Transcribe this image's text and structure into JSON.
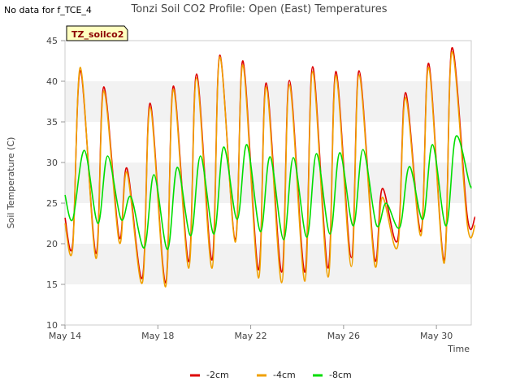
{
  "no_data_note": "No data for f_TCE_4",
  "chart_data": {
    "type": "line",
    "title": "Tonzi Soil CO2 Profile: Open (East) Temperatures",
    "xlabel": "Time",
    "ylabel": "Soil Temperature (C)",
    "badge": "TZ_soilco2",
    "xlim": [
      "2024-05-14",
      "2024-05-31T12:00"
    ],
    "ylim": [
      10,
      45
    ],
    "yticks": [
      10,
      15,
      20,
      25,
      30,
      35,
      40,
      45
    ],
    "xticks": [
      {
        "date": "2024-05-14",
        "label": "May 14"
      },
      {
        "date": "2024-05-18",
        "label": "May 18"
      },
      {
        "date": "2024-05-22",
        "label": "May 22"
      },
      {
        "date": "2024-05-26",
        "label": "May 26"
      },
      {
        "date": "2024-05-30",
        "label": "May 30"
      }
    ],
    "grid": "horizontal bands",
    "legend_position": "bottom",
    "series": [
      {
        "name": "-2cm",
        "color": "#dd0000",
        "x": [
          "2024-05-14T00:00",
          "2024-05-14T08:00",
          "2024-05-14T16:00",
          "2024-05-15T08:00",
          "2024-05-15T16:00",
          "2024-05-16T08:00",
          "2024-05-16T16:00",
          "2024-05-17T08:00",
          "2024-05-17T16:00",
          "2024-05-18T08:00",
          "2024-05-18T16:00",
          "2024-05-19T08:00",
          "2024-05-19T16:00",
          "2024-05-20T08:00",
          "2024-05-20T16:00",
          "2024-05-21T08:00",
          "2024-05-21T16:00",
          "2024-05-22T08:00",
          "2024-05-22T16:00",
          "2024-05-23T08:00",
          "2024-05-23T16:00",
          "2024-05-24T08:00",
          "2024-05-24T16:00",
          "2024-05-25T08:00",
          "2024-05-25T16:00",
          "2024-05-26T08:00",
          "2024-05-26T16:00",
          "2024-05-27T08:00",
          "2024-05-27T16:00",
          "2024-05-28T08:00",
          "2024-05-28T16:00",
          "2024-05-29T08:00",
          "2024-05-29T16:00",
          "2024-05-30T08:00",
          "2024-05-30T16:00",
          "2024-05-31T08:00",
          "2024-05-31T16:00"
        ],
        "y": [
          23.2,
          20.0,
          41.3,
          18.8,
          39.3,
          20.8,
          29.3,
          15.8,
          37.3,
          15.2,
          39.4,
          17.8,
          40.9,
          18.0,
          43.2,
          20.5,
          42.5,
          16.8,
          39.8,
          16.5,
          40.1,
          16.5,
          41.8,
          17.0,
          41.2,
          18.3,
          41.3,
          18.2,
          26.8,
          20.5,
          38.6,
          21.5,
          42.2,
          18.0,
          44.1,
          23.3,
          23.3
        ]
      },
      {
        "name": "-4cm",
        "color": "#f0a000",
        "x": [
          "2024-05-14T00:00",
          "2024-05-14T08:00",
          "2024-05-14T16:00",
          "2024-05-15T08:00",
          "2024-05-15T16:00",
          "2024-05-16T08:00",
          "2024-05-16T16:00",
          "2024-05-17T08:00",
          "2024-05-17T16:00",
          "2024-05-18T08:00",
          "2024-05-18T16:00",
          "2024-05-19T08:00",
          "2024-05-19T16:00",
          "2024-05-20T08:00",
          "2024-05-20T16:00",
          "2024-05-21T08:00",
          "2024-05-21T16:00",
          "2024-05-22T08:00",
          "2024-05-22T16:00",
          "2024-05-23T08:00",
          "2024-05-23T16:00",
          "2024-05-24T08:00",
          "2024-05-24T16:00",
          "2024-05-25T08:00",
          "2024-05-25T16:00",
          "2024-05-26T08:00",
          "2024-05-26T16:00",
          "2024-05-27T08:00",
          "2024-05-27T16:00",
          "2024-05-28T08:00",
          "2024-05-28T16:00",
          "2024-05-29T08:00",
          "2024-05-29T16:00",
          "2024-05-30T08:00",
          "2024-05-30T16:00",
          "2024-05-31T08:00",
          "2024-05-31T16:00"
        ],
        "y": [
          22.5,
          19.5,
          41.7,
          18.2,
          38.8,
          20.2,
          28.8,
          15.2,
          36.8,
          14.7,
          39.0,
          17.0,
          40.4,
          17.0,
          43.0,
          20.2,
          42.0,
          15.8,
          39.3,
          15.2,
          39.6,
          15.4,
          41.2,
          15.9,
          40.7,
          17.2,
          40.8,
          17.5,
          25.7,
          19.7,
          38.0,
          21.0,
          41.7,
          17.6,
          43.6,
          22.3,
          22.3
        ]
      },
      {
        "name": "-8cm",
        "color": "#00dd00",
        "x": [
          "2024-05-14T00:00",
          "2024-05-14T08:00",
          "2024-05-14T20:00",
          "2024-05-15T10:00",
          "2024-05-15T20:00",
          "2024-05-16T10:00",
          "2024-05-16T20:00",
          "2024-05-17T10:00",
          "2024-05-17T20:00",
          "2024-05-18T10:00",
          "2024-05-18T20:00",
          "2024-05-19T10:00",
          "2024-05-19T20:00",
          "2024-05-20T10:00",
          "2024-05-20T20:00",
          "2024-05-21T10:00",
          "2024-05-21T20:00",
          "2024-05-22T10:00",
          "2024-05-22T20:00",
          "2024-05-23T10:00",
          "2024-05-23T20:00",
          "2024-05-24T10:00",
          "2024-05-24T20:00",
          "2024-05-25T10:00",
          "2024-05-25T20:00",
          "2024-05-26T10:00",
          "2024-05-26T20:00",
          "2024-05-27T10:00",
          "2024-05-27T20:00",
          "2024-05-28T10:00",
          "2024-05-28T20:00",
          "2024-05-29T10:00",
          "2024-05-29T20:00",
          "2024-05-30T10:00",
          "2024-05-30T20:00",
          "2024-05-31T10:00",
          "2024-05-31T12:00"
        ],
        "y": [
          26.0,
          23.0,
          31.5,
          22.5,
          30.8,
          23.0,
          25.8,
          19.5,
          28.5,
          19.3,
          29.4,
          21.0,
          30.8,
          21.2,
          31.9,
          23.0,
          32.2,
          21.5,
          30.7,
          20.5,
          30.6,
          20.8,
          31.1,
          21.2,
          31.2,
          22.2,
          31.6,
          22.3,
          25.0,
          22.0,
          29.5,
          23.0,
          32.2,
          22.2,
          33.2,
          27.5,
          27.0
        ]
      }
    ]
  }
}
